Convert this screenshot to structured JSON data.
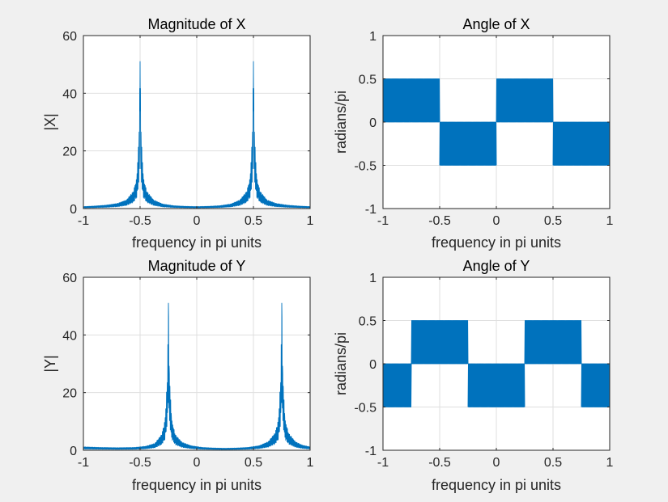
{
  "figure": {
    "background": "#f0f0f0",
    "series_color": "#0072bd"
  },
  "chart_data": [
    {
      "id": "mag-x",
      "type": "line",
      "title": "Magnitude of X",
      "xlabel": "frequency in pi units",
      "ylabel": "|X|",
      "xlim": [
        -1,
        1
      ],
      "ylim": [
        0,
        60
      ],
      "xticks": [
        -1,
        -0.5,
        0,
        0.5,
        1
      ],
      "yticks": [
        0,
        20,
        40,
        60
      ],
      "xtick_labels": [
        "-1",
        "-0.5",
        "0",
        "0.5",
        "1"
      ],
      "ytick_labels": [
        "0",
        "20",
        "40",
        "60"
      ],
      "grid": true,
      "series": [
        {
          "kind": "magnitude",
          "peaks": [
            -0.5,
            0.5
          ],
          "peak_value": 51,
          "side_lobe": 10.5,
          "floor": 0.7,
          "x": [
            -1.0,
            -0.9,
            -0.8,
            -0.7,
            -0.62,
            -0.56,
            -0.53,
            -0.51,
            -0.5,
            -0.49,
            -0.47,
            -0.44,
            -0.38,
            -0.3,
            -0.2,
            -0.1,
            0.0,
            0.1,
            0.2,
            0.3,
            0.38,
            0.44,
            0.47,
            0.49,
            0.5,
            0.51,
            0.53,
            0.56,
            0.62,
            0.7,
            0.8,
            0.9,
            1.0
          ],
          "y": [
            0.7,
            0.9,
            1.2,
            1.8,
            3.0,
            6.0,
            10.5,
            25.0,
            51.0,
            25.0,
            10.5,
            6.0,
            3.0,
            1.6,
            1.0,
            0.8,
            0.7,
            0.8,
            1.0,
            1.6,
            3.0,
            6.0,
            10.5,
            25.0,
            51.0,
            25.0,
            10.5,
            6.0,
            3.0,
            1.8,
            1.2,
            0.9,
            0.7
          ]
        }
      ]
    },
    {
      "id": "ang-x",
      "type": "line",
      "title": "Angle of X",
      "xlabel": "frequency in pi units",
      "ylabel": "radians/pi",
      "xlim": [
        -1,
        1
      ],
      "ylim": [
        -1,
        1
      ],
      "xticks": [
        -1,
        -0.5,
        0,
        0.5,
        1
      ],
      "yticks": [
        -1,
        -0.5,
        0,
        0.5,
        1
      ],
      "xtick_labels": [
        "-1",
        "-0.5",
        "0",
        "0.5",
        "1"
      ],
      "ytick_labels": [
        "-1",
        "-0.5",
        "0",
        "0.5",
        "1"
      ],
      "grid": true,
      "series": [
        {
          "kind": "phase",
          "segments": [
            {
              "x0": -1.0,
              "x1": -0.5,
              "low": 0.0,
              "high": 0.5
            },
            {
              "x0": -0.5,
              "x1": 0.0,
              "low": -0.5,
              "high": 0.0
            },
            {
              "x0": 0.0,
              "x1": 0.5,
              "low": 0.0,
              "high": 0.5
            },
            {
              "x0": 0.5,
              "x1": 1.0,
              "low": -0.5,
              "high": 0.0
            }
          ]
        }
      ]
    },
    {
      "id": "mag-y",
      "type": "line",
      "title": "Magnitude of Y",
      "xlabel": "frequency in pi units",
      "ylabel": "|Y|",
      "xlim": [
        -1,
        1
      ],
      "ylim": [
        0,
        60
      ],
      "xticks": [
        -1,
        -0.5,
        0,
        0.5,
        1
      ],
      "yticks": [
        0,
        20,
        40,
        60
      ],
      "xtick_labels": [
        "-1",
        "-0.5",
        "0",
        "0.5",
        "1"
      ],
      "ytick_labels": [
        "0",
        "20",
        "40",
        "60"
      ],
      "grid": true,
      "series": [
        {
          "kind": "magnitude",
          "peaks": [
            -0.25,
            0.75
          ],
          "peak_value": 51,
          "side_lobe": 10.5,
          "floor": 0.7,
          "x": [
            -1.0,
            -0.85,
            -0.7,
            -0.55,
            -0.45,
            -0.37,
            -0.31,
            -0.28,
            -0.26,
            -0.25,
            -0.24,
            -0.22,
            -0.19,
            -0.13,
            -0.05,
            0.05,
            0.15,
            0.25,
            0.35,
            0.45,
            0.55,
            0.63,
            0.69,
            0.72,
            0.74,
            0.75,
            0.76,
            0.78,
            0.81,
            0.87,
            0.93,
            1.0
          ],
          "y": [
            1.2,
            1.0,
            0.9,
            1.0,
            1.4,
            2.4,
            5.5,
            10.5,
            25.0,
            51.0,
            25.0,
            10.5,
            5.5,
            2.8,
            1.6,
            1.0,
            0.8,
            0.7,
            0.8,
            1.0,
            1.6,
            3.0,
            6.0,
            10.5,
            25.0,
            51.0,
            25.0,
            10.5,
            6.0,
            3.0,
            1.8,
            1.2
          ]
        }
      ]
    },
    {
      "id": "ang-y",
      "type": "line",
      "title": "Angle of Y",
      "xlabel": "frequency in pi units",
      "ylabel": "radians/pi",
      "xlim": [
        -1,
        1
      ],
      "ylim": [
        -1,
        1
      ],
      "xticks": [
        -1,
        -0.5,
        0,
        0.5,
        1
      ],
      "yticks": [
        -1,
        -0.5,
        0,
        0.5,
        1
      ],
      "xtick_labels": [
        "-1",
        "-0.5",
        "0",
        "0.5",
        "1"
      ],
      "ytick_labels": [
        "-1",
        "-0.5",
        "0",
        "0.5",
        "1"
      ],
      "grid": true,
      "series": [
        {
          "kind": "phase",
          "segments": [
            {
              "x0": -1.0,
              "x1": -0.75,
              "low": -0.5,
              "high": 0.0
            },
            {
              "x0": -0.75,
              "x1": -0.25,
              "low": 0.0,
              "high": 0.5
            },
            {
              "x0": -0.25,
              "x1": 0.25,
              "low": -0.5,
              "high": 0.0
            },
            {
              "x0": 0.25,
              "x1": 0.75,
              "low": 0.0,
              "high": 0.5
            },
            {
              "x0": 0.75,
              "x1": 1.0,
              "low": -0.5,
              "high": 0.0
            }
          ]
        }
      ]
    }
  ]
}
